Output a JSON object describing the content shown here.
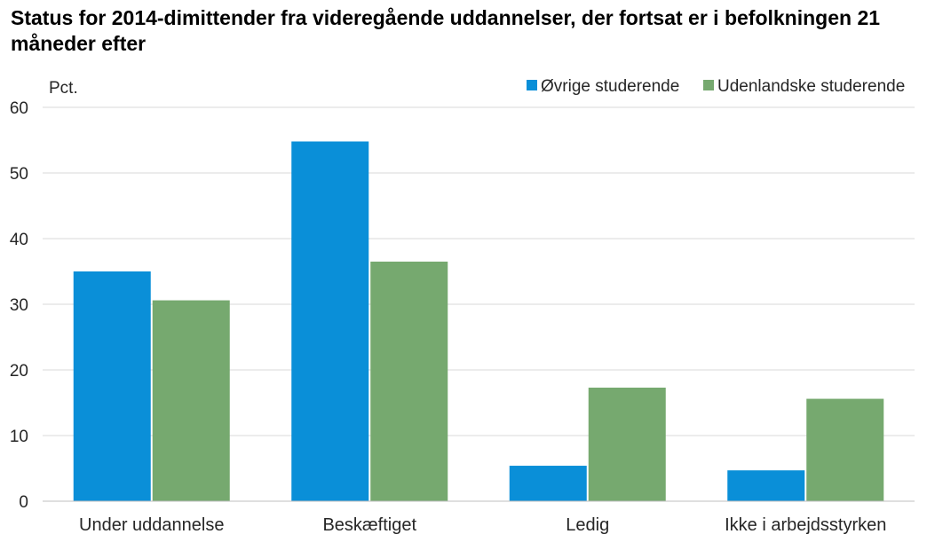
{
  "chart_data": {
    "type": "bar",
    "title": "Status for 2014-dimittender fra videregående uddannelser, der fortsat er i befolkningen 21 måneder efter",
    "ylabel": "Pct.",
    "xlabel": "",
    "ylim": [
      0,
      60
    ],
    "yticks": [
      "0",
      "10",
      "20",
      "30",
      "40",
      "50",
      "60"
    ],
    "categories": [
      "Under uddannelse",
      "Beskæftiget",
      "Ledig",
      "Ikke i arbejdsstyrken"
    ],
    "series": [
      {
        "name": "Øvrige studerende",
        "color": "#0A8FD8",
        "values": [
          35,
          54.8,
          5.4,
          4.7
        ]
      },
      {
        "name": "Udenlandske studerende",
        "color": "#76A96F",
        "values": [
          30.6,
          36.5,
          17.3,
          15.6
        ]
      }
    ],
    "grid": true,
    "legend_position": "top-right"
  }
}
